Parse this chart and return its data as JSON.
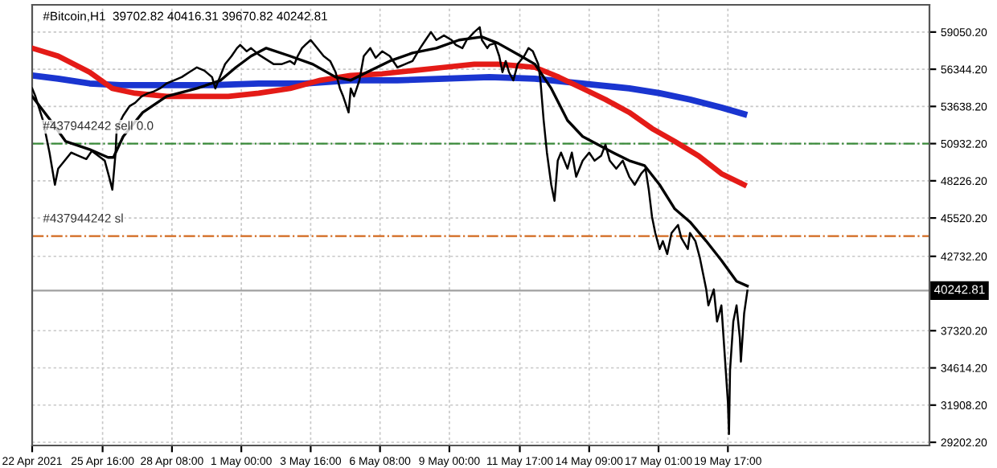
{
  "chart_data": {
    "type": "line",
    "title": "#Bitcoin,H1  39702.82 40416.31 39670.82 40242.81",
    "series": [
      {
        "color": "#000000",
        "x": [
          "2021-04-22T23:00",
          "2021-04-23T02:00",
          "2021-04-23T09:00",
          "2021-04-23T15:00",
          "2021-04-23T20:00",
          "2021-04-23T23:00",
          "2021-04-24T05:00",
          "2021-04-24T11:00",
          "2021-04-24T18:00",
          "2021-04-25T01:00",
          "2021-04-25T06:00",
          "2021-04-25T12:00",
          "2021-04-25T18:00",
          "2021-04-25T22:00",
          "2021-04-26T01:00",
          "2021-04-26T04:00",
          "2021-04-26T05:00",
          "2021-04-26T11:00",
          "2021-04-26T17:00",
          "2021-04-26T22:00",
          "2021-04-27T04:00",
          "2021-04-27T10:00",
          "2021-04-27T15:00",
          "2021-04-27T21:00",
          "2021-04-28T03:00",
          "2021-04-28T10:00",
          "2021-04-28T17:00",
          "2021-04-29T00:00",
          "2021-04-29T07:00",
          "2021-04-29T14:00",
          "2021-04-29T21:00",
          "2021-04-30T00:00",
          "2021-04-30T03:00",
          "2021-04-30T09:00",
          "2021-04-30T15:00",
          "2021-04-30T20:00",
          "2021-04-30T23:00",
          "2021-05-01T05:00",
          "2021-05-01T09:00",
          "2021-05-01T16:00",
          "2021-05-01T23:00",
          "2021-05-02T06:00",
          "2021-05-02T13:00",
          "2021-05-02T21:00",
          "2021-05-03T01:00",
          "2021-05-03T04:00",
          "2021-05-03T08:00",
          "2021-05-03T11:00",
          "2021-05-03T16:00",
          "2021-05-03T22:00",
          "2021-05-04T04:00",
          "2021-05-04T10:00",
          "2021-05-04T15:00",
          "2021-05-04T19:00",
          "2021-05-04T22:00",
          "2021-05-05T03:00",
          "2021-05-05T05:00",
          "2021-05-05T08:00",
          "2021-05-05T13:00",
          "2021-05-05T17:00",
          "2021-05-05T23:00",
          "2021-05-06T04:00",
          "2021-05-06T10:00",
          "2021-05-06T17:00",
          "2021-05-07T00:00",
          "2021-05-07T07:00",
          "2021-05-07T14:00",
          "2021-05-07T21:00",
          "2021-05-08T02:00",
          "2021-05-08T07:00",
          "2021-05-08T12:00",
          "2021-05-08T19:00",
          "2021-05-09T02:00",
          "2021-05-09T06:00",
          "2021-05-09T12:00",
          "2021-05-09T16:00",
          "2021-05-09T23:00",
          "2021-05-10T04:00",
          "2021-05-10T06:00",
          "2021-05-10T11:00",
          "2021-05-10T13:00",
          "2021-05-10T18:00",
          "2021-05-10T22:00",
          "2021-05-11T01:00",
          "2021-05-11T04:00",
          "2021-05-11T07:00",
          "2021-05-11T11:00",
          "2021-05-11T15:00",
          "2021-05-11T21:00",
          "2021-05-12T01:00",
          "2021-05-12T05:00",
          "2021-05-12T10:00",
          "2021-05-12T12:00",
          "2021-05-12T15:00",
          "2021-05-12T18:00",
          "2021-05-12T22:00",
          "2021-05-13T01:00",
          "2021-05-13T04:00",
          "2021-05-13T07:00",
          "2021-05-13T13:00",
          "2021-05-13T17:00",
          "2021-05-13T21:00",
          "2021-05-14T03:00",
          "2021-05-14T09:00",
          "2021-05-14T14:00",
          "2021-05-14T20:00",
          "2021-05-15T00:00",
          "2021-05-15T04:00",
          "2021-05-15T10:00",
          "2021-05-15T16:00",
          "2021-05-15T22:00",
          "2021-05-16T03:00",
          "2021-05-16T09:00",
          "2021-05-16T13:00",
          "2021-05-16T16:00",
          "2021-05-16T19:00",
          "2021-05-16T22:00",
          "2021-05-17T02:00",
          "2021-05-17T05:00",
          "2021-05-17T09:00",
          "2021-05-17T13:00",
          "2021-05-17T19:00",
          "2021-05-17T22:00",
          "2021-05-18T04:00",
          "2021-05-18T06:00",
          "2021-05-18T11:00",
          "2021-05-18T15:00",
          "2021-05-18T18:00",
          "2021-05-18T21:00",
          "2021-05-18T23:00",
          "2021-05-19T04:00",
          "2021-05-19T07:00",
          "2021-05-19T11:00",
          "2021-05-19T14:00",
          "2021-05-19T17:00",
          "2021-05-19T18:00",
          "2021-05-19T19:00",
          "2021-05-19T22:00",
          "2021-05-20T01:00",
          "2021-05-20T04:00",
          "2021-05-20T05:00",
          "2021-05-20T08:00",
          "2021-05-20T11:00"
        ],
        "values": [
          54950,
          54370,
          52620,
          50280,
          47940,
          49110,
          49690,
          50280,
          50040,
          49810,
          50390,
          50040,
          49690,
          48520,
          47580,
          50280,
          52030,
          52970,
          53670,
          53900,
          54370,
          54600,
          54720,
          54950,
          55310,
          55540,
          55770,
          56130,
          56480,
          56240,
          55770,
          54950,
          55540,
          56710,
          57300,
          57880,
          58110,
          57650,
          57880,
          57410,
          57060,
          56710,
          56710,
          56940,
          56710,
          57300,
          57880,
          58110,
          58470,
          57880,
          57300,
          56940,
          56130,
          54950,
          54370,
          53200,
          54950,
          54370,
          55540,
          57300,
          57880,
          57180,
          57650,
          57300,
          56480,
          56710,
          56940,
          57880,
          58470,
          59050,
          58470,
          58800,
          58470,
          58110,
          57880,
          58470,
          59050,
          59400,
          58470,
          57880,
          58110,
          58230,
          57300,
          56130,
          56940,
          56130,
          55540,
          56710,
          57300,
          57880,
          57650,
          56710,
          55540,
          52620,
          50280,
          47940,
          46770,
          49690,
          50280,
          49110,
          50280,
          48520,
          49690,
          50280,
          49690,
          50040,
          50860,
          49690,
          49110,
          49690,
          48520,
          47940,
          48750,
          49110,
          47580,
          45600,
          44430,
          43260,
          43840,
          42900,
          44430,
          45010,
          44070,
          43260,
          44430,
          43840,
          42670,
          41500,
          40330,
          39160,
          40330,
          37990,
          39160,
          35650,
          32140,
          29800,
          34480,
          37990,
          39160,
          36820,
          35070,
          38580,
          40243
        ]
      },
      {
        "color": "#000000",
        "x": [
          "2021-04-22T23:00",
          "2021-04-23T16:00",
          "2021-04-24T06:00",
          "2021-04-25T04:00",
          "2021-04-25T21:00",
          "2021-04-26T02:00",
          "2021-04-26T11:00",
          "2021-04-27T05:00",
          "2021-04-28T03:00",
          "2021-04-29T07:00",
          "2021-04-30T05:00",
          "2021-04-30T19:00",
          "2021-05-01T09:00",
          "2021-05-01T23:00",
          "2021-05-02T21:00",
          "2021-05-03T18:00",
          "2021-05-04T15:00",
          "2021-05-05T05:00",
          "2021-05-05T20:00",
          "2021-05-06T17:00",
          "2021-05-07T14:00",
          "2021-05-08T12:00",
          "2021-05-09T09:00",
          "2021-05-10T06:00",
          "2021-05-10T21:00",
          "2021-05-11T18:00",
          "2021-05-12T07:00",
          "2021-05-12T22:00",
          "2021-05-13T13:00",
          "2021-05-14T03:00",
          "2021-05-14T17:00",
          "2021-05-15T07:00",
          "2021-05-15T22:00",
          "2021-05-16T12:00",
          "2021-05-17T02:00",
          "2021-05-17T16:00",
          "2021-05-18T06:00",
          "2021-05-18T21:00",
          "2021-05-19T11:00",
          "2021-05-20T01:00",
          "2021-05-20T11:00"
        ],
        "values": [
          54370,
          52620,
          51090,
          50510,
          49930,
          49930,
          51450,
          53200,
          54370,
          54950,
          55540,
          56480,
          57300,
          57880,
          57300,
          56710,
          55770,
          55540,
          56130,
          56940,
          57530,
          57880,
          58470,
          58700,
          58230,
          57300,
          56710,
          54950,
          52620,
          51450,
          50860,
          50280,
          49690,
          49340,
          47940,
          46180,
          45240,
          43840,
          42440,
          40920,
          40570
        ]
      },
      {
        "color": "#e41b17",
        "x": [
          "2021-04-22T23:00",
          "2021-04-23T23:00",
          "2021-04-25T04:00",
          "2021-04-26T01:00",
          "2021-04-26T22:00",
          "2021-04-28T03:00",
          "2021-04-29T07:00",
          "2021-04-30T12:00",
          "2021-05-01T16:00",
          "2021-05-02T21:00",
          "2021-05-04T01:00",
          "2021-05-05T05:00",
          "2021-05-06T10:00",
          "2021-05-07T14:00",
          "2021-05-08T19:00",
          "2021-05-09T23:00",
          "2021-05-10T21:00",
          "2021-05-11T15:00",
          "2021-05-12T07:00",
          "2021-05-13T05:00",
          "2021-05-14T03:00",
          "2021-05-15T00:00",
          "2021-05-15T22:00",
          "2021-05-16T19:00",
          "2021-05-17T16:00",
          "2021-05-18T14:00",
          "2021-05-19T11:00",
          "2021-05-20T08:00"
        ],
        "values": [
          57880,
          57300,
          56130,
          54950,
          54600,
          54370,
          54370,
          54370,
          54600,
          54950,
          55540,
          55890,
          56010,
          56240,
          56480,
          56710,
          56710,
          56590,
          56480,
          55770,
          54950,
          54140,
          53200,
          52030,
          51090,
          50040,
          48750,
          47940
        ]
      },
      {
        "color": "#1a35d0",
        "x": [
          "2021-04-22T23:00",
          "2021-04-23T23:00",
          "2021-04-25T04:00",
          "2021-04-26T08:00",
          "2021-04-28T03:00",
          "2021-04-29T21:00",
          "2021-05-01T16:00",
          "2021-05-03T11:00",
          "2021-05-05T05:00",
          "2021-05-07T00:00",
          "2021-05-08T19:00",
          "2021-05-10T13:00",
          "2021-05-12T07:00",
          "2021-05-13T12:00",
          "2021-05-14T17:00",
          "2021-05-15T22:00",
          "2021-05-17T02:00",
          "2021-05-18T06:00",
          "2021-05-19T11:00",
          "2021-05-20T08:00"
        ],
        "values": [
          55890,
          55660,
          55310,
          55190,
          55190,
          55190,
          55310,
          55310,
          55540,
          55540,
          55660,
          55770,
          55660,
          55420,
          55190,
          54950,
          54600,
          54140,
          53550,
          53080
        ]
      }
    ],
    "xlim": [
      "2021-04-22T23:00",
      "2021-05-27T11:00"
    ],
    "xticks": [
      {
        "value": "2021-04-22T23:00",
        "label": "22 Apr 2021"
      },
      {
        "value": "2021-04-25T16:00",
        "label": "25 Apr 16:00"
      },
      {
        "value": "2021-04-28T08:00",
        "label": "28 Apr 08:00"
      },
      {
        "value": "2021-05-01T00:00",
        "label": "1 May 00:00"
      },
      {
        "value": "2021-05-03T16:00",
        "label": "3 May 16:00"
      },
      {
        "value": "2021-05-06T08:00",
        "label": "6 May 08:00"
      },
      {
        "value": "2021-05-09T00:00",
        "label": "9 May 00:00"
      },
      {
        "value": "2021-05-11T17:00",
        "label": "11 May 17:00"
      },
      {
        "value": "2021-05-14T09:00",
        "label": "14 May 09:00"
      },
      {
        "value": "2021-05-17T01:00",
        "label": "17 May 01:00"
      },
      {
        "value": "2021-05-19T17:00",
        "label": "19 May 17:00"
      }
    ],
    "ylim": [
      28970,
      61030
    ],
    "yticks": [
      {
        "value": 29202.2,
        "label": "29202.20"
      },
      {
        "value": 31908.2,
        "label": "31908.20"
      },
      {
        "value": 34614.2,
        "label": "34614.20"
      },
      {
        "value": 37320.2,
        "label": "37320.20"
      },
      {
        "value": 42732.2,
        "label": "42732.20"
      },
      {
        "value": 45520.2,
        "label": "45520.20"
      },
      {
        "value": 48226.2,
        "label": "48226.20"
      },
      {
        "value": 50932.2,
        "label": "50932.20"
      },
      {
        "value": 53638.2,
        "label": "53638.20"
      },
      {
        "value": 56344.2,
        "label": "56344.20"
      },
      {
        "value": 59050.2,
        "label": "59050.20"
      }
    ],
    "grid": true,
    "line_style": "solid",
    "marker": "none",
    "ref_lines": [
      {
        "axis": "y",
        "value": 50932.2,
        "label": "#437944242 sell 0.0",
        "color": "#3a8a3a",
        "line_style": "dashdot"
      },
      {
        "axis": "y",
        "value": 44200,
        "label": "#437944242 sl",
        "color": "#d2691e",
        "line_style": "dashdot"
      },
      {
        "axis": "y",
        "value": 40242.81,
        "label": "40242.81",
        "color": "#a0a0a0",
        "line_style": "solid"
      }
    ]
  }
}
